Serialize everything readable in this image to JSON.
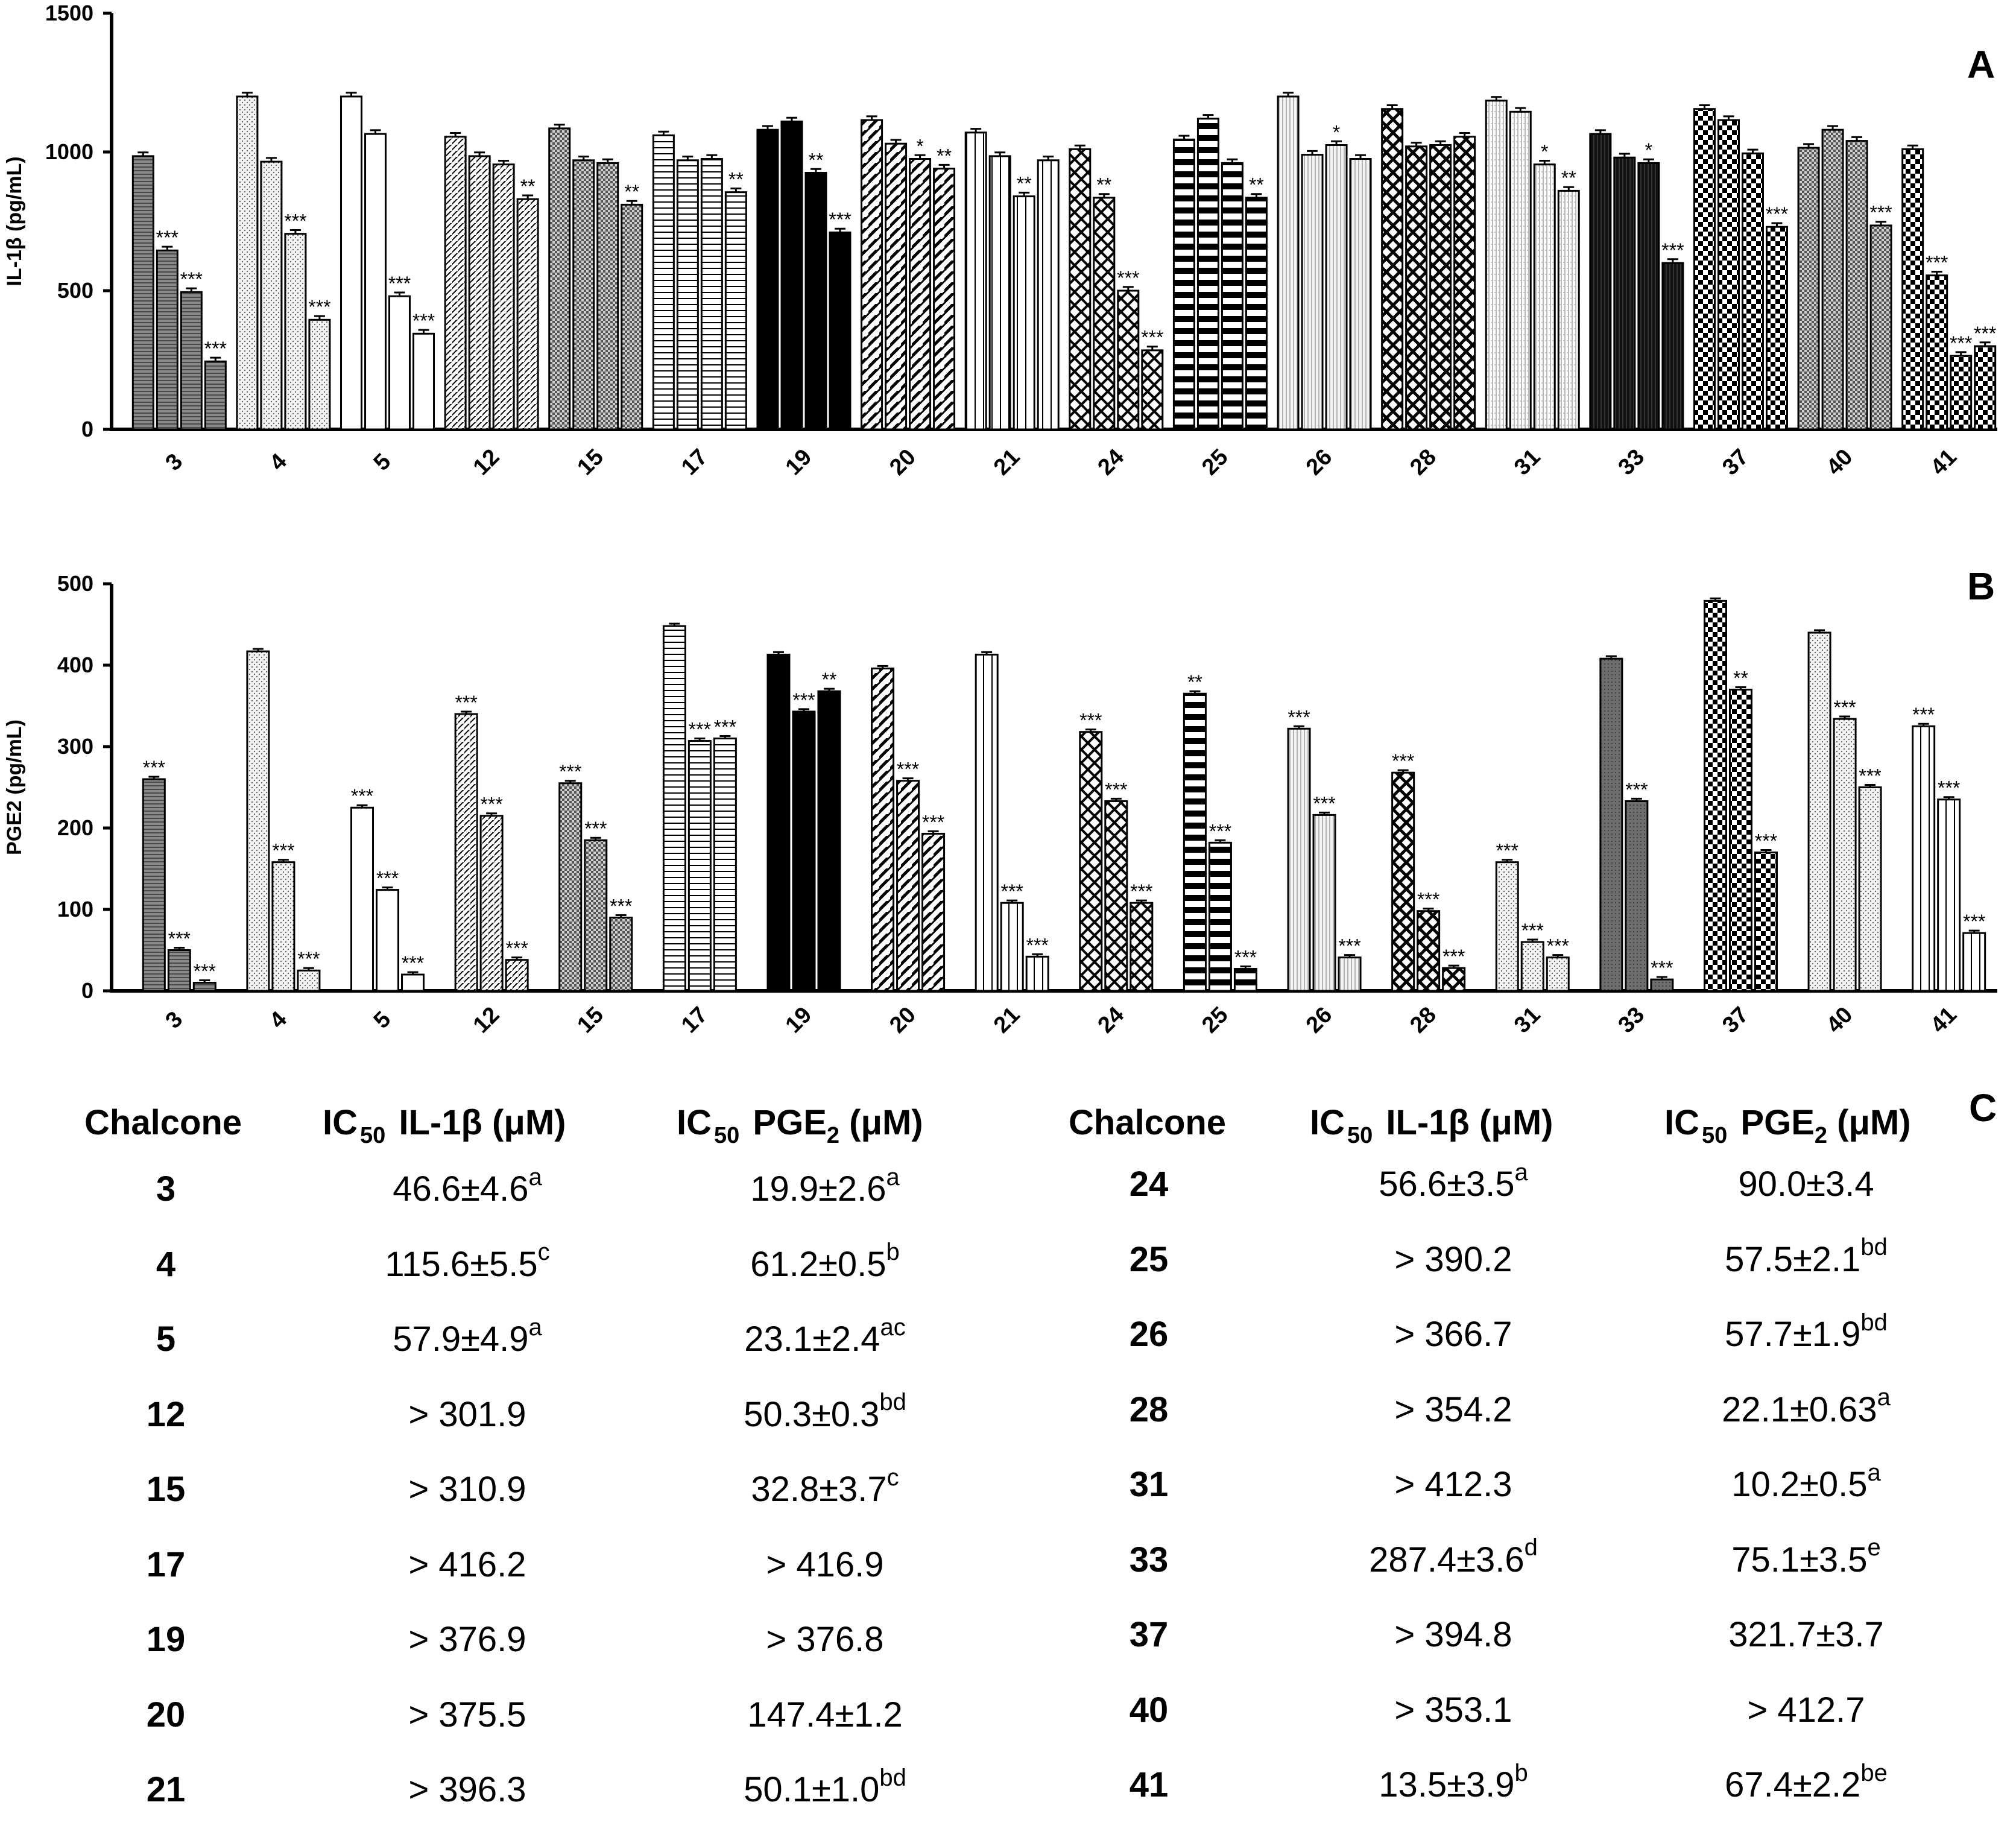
{
  "panel_labels": {
    "a": "A",
    "b": "B",
    "c": "C"
  },
  "chart_data": [
    {
      "type": "bar",
      "panel": "A",
      "ylabel": "IL-1β (pg/mL)",
      "ylim": [
        0,
        1500
      ],
      "yticks": [
        0,
        500,
        1000,
        1500
      ],
      "categories": [
        "3",
        "4",
        "5",
        "12",
        "15",
        "17",
        "19",
        "20",
        "21",
        "24",
        "25",
        "26",
        "28",
        "31",
        "33",
        "37",
        "40",
        "41"
      ],
      "groups": [
        {
          "cat": "3",
          "pattern": "hlines-gray",
          "values": [
            985,
            645,
            495,
            245
          ],
          "sig": [
            "",
            "***",
            "***",
            "***"
          ]
        },
        {
          "cat": "4",
          "pattern": "dots-light",
          "values": [
            1200,
            965,
            705,
            395
          ],
          "sig": [
            "",
            "",
            "***",
            "***"
          ]
        },
        {
          "cat": "5",
          "pattern": "white",
          "values": [
            1200,
            1065,
            480,
            345
          ],
          "sig": [
            "",
            "",
            "***",
            "***"
          ]
        },
        {
          "cat": "12",
          "pattern": "diag",
          "values": [
            1055,
            985,
            955,
            830
          ],
          "sig": [
            "",
            "",
            "",
            "**"
          ]
        },
        {
          "cat": "15",
          "pattern": "checker-small",
          "values": [
            1085,
            970,
            960,
            810
          ],
          "sig": [
            "",
            "",
            "",
            "**"
          ]
        },
        {
          "cat": "17",
          "pattern": "hlines-white",
          "values": [
            1060,
            970,
            975,
            855
          ],
          "sig": [
            "",
            "",
            "",
            "**"
          ]
        },
        {
          "cat": "19",
          "pattern": "black",
          "values": [
            1080,
            1110,
            925,
            710
          ],
          "sig": [
            "",
            "",
            "**",
            "***"
          ]
        },
        {
          "cat": "20",
          "pattern": "diag-wide",
          "values": [
            1115,
            1030,
            975,
            940
          ],
          "sig": [
            "",
            "",
            "*",
            "**"
          ]
        },
        {
          "cat": "21",
          "pattern": "vlines",
          "values": [
            1070,
            985,
            840,
            970
          ],
          "sig": [
            "",
            "",
            "**",
            ""
          ]
        },
        {
          "cat": "24",
          "pattern": "crosshatch",
          "values": [
            1010,
            835,
            500,
            285
          ],
          "sig": [
            "",
            "**",
            "***",
            "***"
          ]
        },
        {
          "cat": "25",
          "pattern": "hstripes-bold",
          "values": [
            1045,
            1120,
            960,
            835
          ],
          "sig": [
            "",
            "",
            "",
            "**"
          ]
        },
        {
          "cat": "26",
          "pattern": "vlines-fine",
          "values": [
            1200,
            990,
            1025,
            975
          ],
          "sig": [
            "",
            "",
            "*",
            ""
          ]
        },
        {
          "cat": "28",
          "pattern": "crosshatch-bold",
          "values": [
            1155,
            1020,
            1025,
            1055
          ],
          "sig": [
            "",
            "",
            "",
            ""
          ]
        },
        {
          "cat": "31",
          "pattern": "vlines-light",
          "values": [
            1185,
            1145,
            955,
            860
          ],
          "sig": [
            "",
            "",
            "*",
            "**"
          ]
        },
        {
          "cat": "33",
          "pattern": "black-vlines",
          "values": [
            1065,
            980,
            960,
            600
          ],
          "sig": [
            "",
            "",
            "*",
            "***"
          ]
        },
        {
          "cat": "37",
          "pattern": "checker-bold",
          "values": [
            1155,
            1115,
            995,
            730
          ],
          "sig": [
            "",
            "",
            "",
            "***"
          ]
        },
        {
          "cat": "40",
          "pattern": "checker-small",
          "values": [
            1015,
            1080,
            1040,
            735
          ],
          "sig": [
            "",
            "",
            "",
            "***"
          ]
        },
        {
          "cat": "41",
          "pattern": "checker-bold",
          "values": [
            1010,
            555,
            265,
            300
          ],
          "sig": [
            "",
            "***",
            "***",
            "***"
          ]
        }
      ]
    },
    {
      "type": "bar",
      "panel": "B",
      "ylabel": "PGE2 (pg/mL)",
      "ylim": [
        0,
        500
      ],
      "yticks": [
        0,
        100,
        200,
        300,
        400,
        500
      ],
      "categories": [
        "3",
        "4",
        "5",
        "12",
        "15",
        "17",
        "19",
        "20",
        "21",
        "24",
        "25",
        "26",
        "28",
        "31",
        "33",
        "37",
        "40",
        "41"
      ],
      "groups": [
        {
          "cat": "3",
          "pattern": "hlines-gray",
          "values": [
            260,
            50,
            10
          ],
          "sig": [
            "***",
            "***",
            "***"
          ]
        },
        {
          "cat": "4",
          "pattern": "dots-light",
          "values": [
            417,
            158,
            25
          ],
          "sig": [
            "",
            "***",
            "***"
          ]
        },
        {
          "cat": "5",
          "pattern": "white",
          "values": [
            225,
            124,
            20
          ],
          "sig": [
            "***",
            "***",
            "***"
          ]
        },
        {
          "cat": "12",
          "pattern": "diag",
          "values": [
            340,
            215,
            38
          ],
          "sig": [
            "***",
            "***",
            "***"
          ]
        },
        {
          "cat": "15",
          "pattern": "checker-small",
          "values": [
            255,
            185,
            90
          ],
          "sig": [
            "***",
            "***",
            "***"
          ]
        },
        {
          "cat": "17",
          "pattern": "hlines-white",
          "values": [
            448,
            307,
            310
          ],
          "sig": [
            "",
            "***",
            "***"
          ]
        },
        {
          "cat": "19",
          "pattern": "black",
          "values": [
            413,
            343,
            368
          ],
          "sig": [
            "",
            "***",
            "**"
          ]
        },
        {
          "cat": "20",
          "pattern": "diag-wide",
          "values": [
            396,
            258,
            193
          ],
          "sig": [
            "",
            "***",
            "***"
          ]
        },
        {
          "cat": "21",
          "pattern": "vlines",
          "values": [
            413,
            108,
            42
          ],
          "sig": [
            "",
            "***",
            "***"
          ]
        },
        {
          "cat": "24",
          "pattern": "crosshatch",
          "values": [
            318,
            233,
            108
          ],
          "sig": [
            "***",
            "***",
            "***"
          ]
        },
        {
          "cat": "25",
          "pattern": "hstripes-bold",
          "values": [
            365,
            182,
            27
          ],
          "sig": [
            "**",
            "***",
            "***"
          ]
        },
        {
          "cat": "26",
          "pattern": "vlines-fine",
          "values": [
            322,
            216,
            41
          ],
          "sig": [
            "***",
            "***",
            "***"
          ]
        },
        {
          "cat": "28",
          "pattern": "crosshatch-bold",
          "values": [
            268,
            98,
            28
          ],
          "sig": [
            "***",
            "***",
            "***"
          ]
        },
        {
          "cat": "31",
          "pattern": "dots-light",
          "values": [
            158,
            60,
            41
          ],
          "sig": [
            "***",
            "***",
            "***"
          ]
        },
        {
          "cat": "33",
          "pattern": "gray-dense",
          "values": [
            408,
            233,
            14
          ],
          "sig": [
            "",
            "***",
            "***"
          ]
        },
        {
          "cat": "37",
          "pattern": "checker-bold",
          "values": [
            479,
            370,
            170
          ],
          "sig": [
            "",
            "**",
            "***"
          ]
        },
        {
          "cat": "40",
          "pattern": "dots-light",
          "values": [
            440,
            334,
            250
          ],
          "sig": [
            "",
            "***",
            "***"
          ]
        },
        {
          "cat": "41",
          "pattern": "vlines",
          "values": [
            325,
            235,
            71
          ],
          "sig": [
            "***",
            "***",
            "***"
          ]
        }
      ]
    }
  ],
  "table": {
    "headers": {
      "chalcone": "Chalcone",
      "ic": "IC",
      "sub50": "50",
      "il1b": "IL-1β (μM)",
      "pge": "PGE",
      "pge_sub": "2",
      "unit": "(μM)"
    },
    "left_rows": [
      {
        "id": "3",
        "il": "46.6±4.6",
        "il_sup": "a",
        "pg": "19.9±2.6",
        "pg_sup": "a"
      },
      {
        "id": "4",
        "il": "115.6±5.5",
        "il_sup": "c",
        "pg": "61.2±0.5",
        "pg_sup": "b"
      },
      {
        "id": "5",
        "il": "57.9±4.9",
        "il_sup": "a",
        "pg": "23.1±2.4",
        "pg_sup": "ac"
      },
      {
        "id": "12",
        "il": "> 301.9",
        "il_sup": "",
        "pg": "50.3±0.3",
        "pg_sup": "bd"
      },
      {
        "id": "15",
        "il": "> 310.9",
        "il_sup": "",
        "pg": "32.8±3.7",
        "pg_sup": "c"
      },
      {
        "id": "17",
        "il": "> 416.2",
        "il_sup": "",
        "pg": ">  416.9",
        "pg_sup": ""
      },
      {
        "id": "19",
        "il": "> 376.9",
        "il_sup": "",
        "pg": ">  376.8",
        "pg_sup": ""
      },
      {
        "id": "20",
        "il": "> 375.5",
        "il_sup": "",
        "pg": "147.4±1.2",
        "pg_sup": ""
      },
      {
        "id": "21",
        "il": "> 396.3",
        "il_sup": "",
        "pg": "50.1±1.0",
        "pg_sup": "bd"
      }
    ],
    "right_rows": [
      {
        "id": "24",
        "il": "56.6±3.5",
        "il_sup": "a",
        "pg": "90.0±3.4",
        "pg_sup": ""
      },
      {
        "id": "25",
        "il": "> 390.2",
        "il_sup": "",
        "pg": "57.5±2.1",
        "pg_sup": "bd"
      },
      {
        "id": "26",
        "il": "> 366.7",
        "il_sup": "",
        "pg": "57.7±1.9",
        "pg_sup": "bd"
      },
      {
        "id": "28",
        "il": "> 354.2",
        "il_sup": "",
        "pg": "22.1±0.63",
        "pg_sup": "a"
      },
      {
        "id": "31",
        "il": "> 412.3",
        "il_sup": "",
        "pg": "10.2±0.5",
        "pg_sup": "a"
      },
      {
        "id": "33",
        "il": "287.4±3.6",
        "il_sup": "d",
        "pg": "75.1±3.5",
        "pg_sup": "e"
      },
      {
        "id": "37",
        "il": "> 394.8",
        "il_sup": "",
        "pg": "321.7±3.7",
        "pg_sup": ""
      },
      {
        "id": "40",
        "il": "> 353.1",
        "il_sup": "",
        "pg": "> 412.7",
        "pg_sup": ""
      },
      {
        "id": "41",
        "il": "13.5±3.9",
        "il_sup": "b",
        "pg": "67.4±2.2",
        "pg_sup": "be"
      }
    ]
  }
}
